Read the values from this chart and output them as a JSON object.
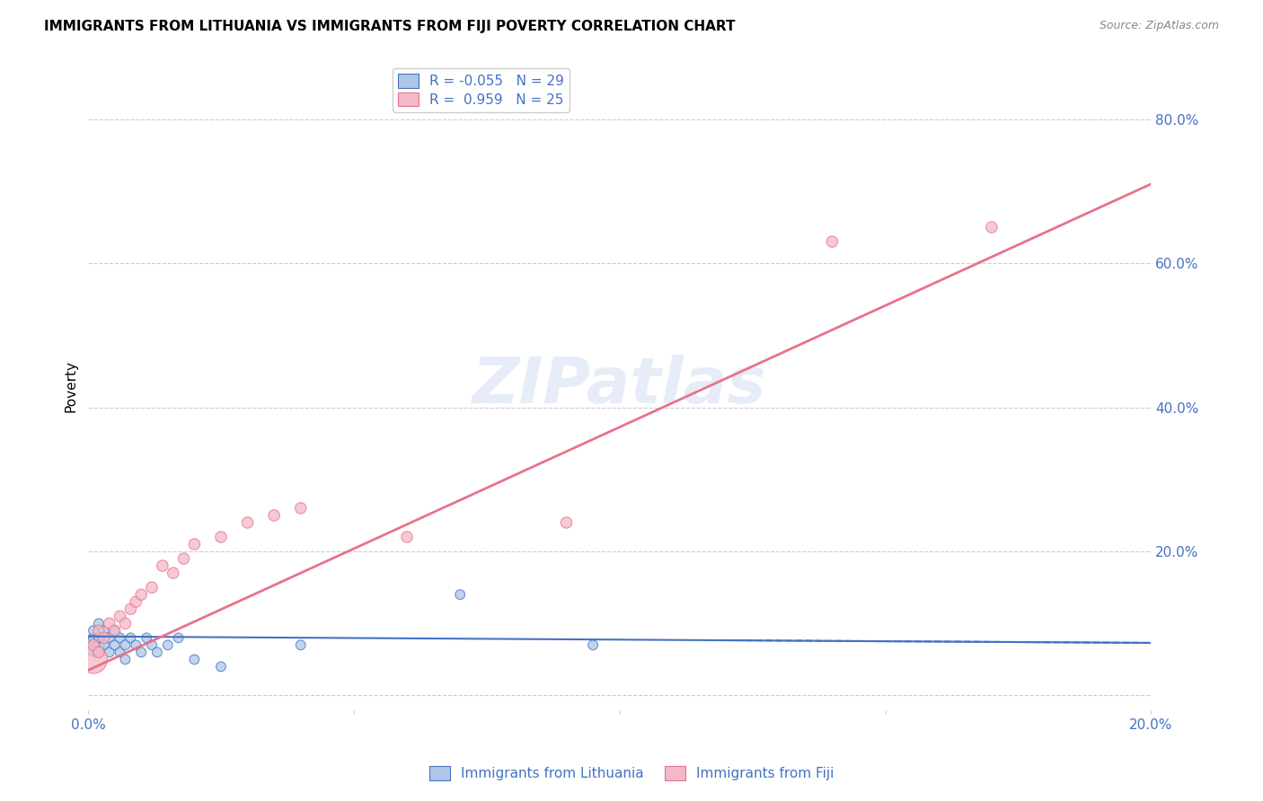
{
  "title": "IMMIGRANTS FROM LITHUANIA VS IMMIGRANTS FROM FIJI POVERTY CORRELATION CHART",
  "source": "Source: ZipAtlas.com",
  "ylabel": "Poverty",
  "watermark": "ZIPatlas",
  "legend_label1": "Immigrants from Lithuania",
  "legend_label2": "Immigrants from Fiji",
  "R_lithuania": -0.055,
  "N_lithuania": 29,
  "R_fiji": 0.959,
  "N_fiji": 25,
  "color_lithuania": "#aec6e8",
  "color_fiji": "#f4b8c8",
  "line_color_lithuania": "#4472c4",
  "line_color_fiji": "#e8728a",
  "axis_label_color": "#4472c4",
  "xlim": [
    0.0,
    0.2
  ],
  "ylim": [
    -0.02,
    0.88
  ],
  "yticks": [
    0.0,
    0.2,
    0.4,
    0.6,
    0.8
  ],
  "ytick_labels": [
    "",
    "20.0%",
    "40.0%",
    "60.0%",
    "80.0%"
  ],
  "lithuania_x": [
    0.001,
    0.001,
    0.001,
    0.002,
    0.002,
    0.002,
    0.003,
    0.003,
    0.004,
    0.004,
    0.005,
    0.005,
    0.006,
    0.006,
    0.007,
    0.007,
    0.008,
    0.009,
    0.01,
    0.011,
    0.012,
    0.013,
    0.015,
    0.017,
    0.02,
    0.025,
    0.04,
    0.07,
    0.095
  ],
  "lithuania_y": [
    0.07,
    0.08,
    0.09,
    0.06,
    0.08,
    0.1,
    0.07,
    0.09,
    0.06,
    0.08,
    0.07,
    0.09,
    0.06,
    0.08,
    0.05,
    0.07,
    0.08,
    0.07,
    0.06,
    0.08,
    0.07,
    0.06,
    0.07,
    0.08,
    0.05,
    0.04,
    0.07,
    0.14,
    0.07
  ],
  "lithuania_size": [
    300,
    60,
    60,
    60,
    60,
    60,
    60,
    60,
    60,
    60,
    60,
    60,
    60,
    60,
    60,
    60,
    60,
    60,
    60,
    60,
    60,
    60,
    60,
    60,
    60,
    60,
    60,
    60,
    60
  ],
  "fiji_x": [
    0.001,
    0.001,
    0.002,
    0.002,
    0.003,
    0.004,
    0.005,
    0.006,
    0.007,
    0.008,
    0.009,
    0.01,
    0.012,
    0.014,
    0.016,
    0.018,
    0.02,
    0.025,
    0.03,
    0.035,
    0.04,
    0.06,
    0.09,
    0.14,
    0.17
  ],
  "fiji_y": [
    0.05,
    0.07,
    0.06,
    0.09,
    0.08,
    0.1,
    0.09,
    0.11,
    0.1,
    0.12,
    0.13,
    0.14,
    0.15,
    0.18,
    0.17,
    0.19,
    0.21,
    0.22,
    0.24,
    0.25,
    0.26,
    0.22,
    0.24,
    0.63,
    0.65
  ],
  "fiji_size": [
    500,
    80,
    80,
    80,
    80,
    80,
    80,
    80,
    80,
    80,
    80,
    80,
    80,
    80,
    80,
    80,
    80,
    80,
    80,
    80,
    80,
    80,
    80,
    80,
    80
  ],
  "fiji_line_x0": 0.0,
  "fiji_line_y0": 0.035,
  "fiji_line_x1": 0.2,
  "fiji_line_y1": 0.71,
  "lith_line_x0": 0.0,
  "lith_line_y0": 0.082,
  "lith_line_x1": 0.2,
  "lith_line_y1": 0.073,
  "grid_color": "#cccccc",
  "background_color": "#ffffff"
}
